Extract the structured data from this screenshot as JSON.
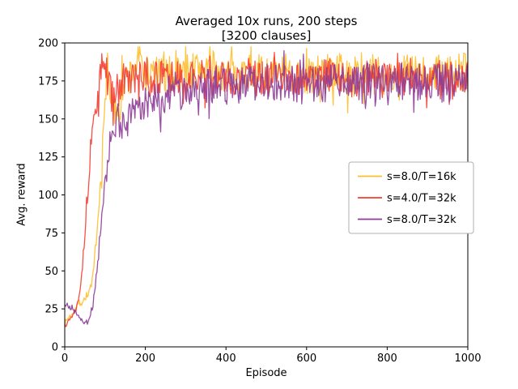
{
  "figure": {
    "background": "#ffffff"
  },
  "chart_data": {
    "type": "line",
    "title_lines": [
      "Averaged 10x runs, 200 steps",
      "[3200 clauses]"
    ],
    "xlabel": "Episode",
    "ylabel": "Avg. reward",
    "xlim": [
      0,
      1000
    ],
    "ylim": [
      0,
      200
    ],
    "xticks": [
      0,
      200,
      400,
      600,
      800,
      1000
    ],
    "yticks": [
      0,
      25,
      50,
      75,
      100,
      125,
      150,
      175,
      200
    ],
    "grid": false,
    "axis_color": "#000000",
    "legend": {
      "position": "center right",
      "border_color": "#b0b0b0"
    },
    "series": [
      {
        "name": "s=8.0/T=16k",
        "color": "#fdbf2d",
        "noise": 13,
        "seed": 7,
        "anchors": [
          [
            0,
            16
          ],
          [
            15,
            21
          ],
          [
            30,
            27
          ],
          [
            45,
            30
          ],
          [
            60,
            36
          ],
          [
            70,
            46
          ],
          [
            80,
            72
          ],
          [
            90,
            112
          ],
          [
            100,
            158
          ],
          [
            106,
            190
          ],
          [
            112,
            172
          ],
          [
            122,
            152
          ],
          [
            132,
            160
          ],
          [
            145,
            172
          ],
          [
            160,
            178
          ],
          [
            185,
            190
          ],
          [
            200,
            180
          ],
          [
            250,
            178
          ],
          [
            300,
            181
          ],
          [
            350,
            184
          ],
          [
            400,
            178
          ],
          [
            450,
            181
          ],
          [
            500,
            179
          ],
          [
            550,
            180
          ],
          [
            600,
            178
          ],
          [
            650,
            181
          ],
          [
            700,
            177
          ],
          [
            750,
            180
          ],
          [
            800,
            178
          ],
          [
            850,
            181
          ],
          [
            900,
            178
          ],
          [
            950,
            180
          ],
          [
            1000,
            181
          ]
        ]
      },
      {
        "name": "s=4.0/T=32k",
        "color": "#f43d31",
        "noise": 12,
        "seed": 13,
        "anchors": [
          [
            0,
            15
          ],
          [
            15,
            19
          ],
          [
            25,
            24
          ],
          [
            35,
            33
          ],
          [
            45,
            56
          ],
          [
            55,
            96
          ],
          [
            65,
            134
          ],
          [
            75,
            154
          ],
          [
            85,
            170
          ],
          [
            95,
            189
          ],
          [
            105,
            178
          ],
          [
            120,
            162
          ],
          [
            135,
            171
          ],
          [
            150,
            176
          ],
          [
            200,
            176
          ],
          [
            250,
            177
          ],
          [
            300,
            175
          ],
          [
            350,
            178
          ],
          [
            400,
            176
          ],
          [
            450,
            178
          ],
          [
            500,
            176
          ],
          [
            550,
            178
          ],
          [
            600,
            175
          ],
          [
            650,
            178
          ],
          [
            700,
            176
          ],
          [
            750,
            177
          ],
          [
            800,
            175
          ],
          [
            850,
            178
          ],
          [
            900,
            176
          ],
          [
            950,
            177
          ],
          [
            1000,
            178
          ]
        ]
      },
      {
        "name": "s=8.0/T=32k",
        "color": "#8e3c97",
        "noise": 13,
        "seed": 21,
        "anchors": [
          [
            0,
            28
          ],
          [
            15,
            26
          ],
          [
            30,
            22
          ],
          [
            45,
            16
          ],
          [
            60,
            18
          ],
          [
            70,
            28
          ],
          [
            80,
            50
          ],
          [
            90,
            80
          ],
          [
            100,
            106
          ],
          [
            115,
            132
          ],
          [
            130,
            150
          ],
          [
            145,
            143
          ],
          [
            160,
            152
          ],
          [
            180,
            157
          ],
          [
            200,
            160
          ],
          [
            230,
            163
          ],
          [
            260,
            167
          ],
          [
            300,
            170
          ],
          [
            350,
            172
          ],
          [
            400,
            172
          ],
          [
            450,
            173
          ],
          [
            500,
            174
          ],
          [
            550,
            172
          ],
          [
            600,
            173
          ],
          [
            650,
            174
          ],
          [
            700,
            173
          ],
          [
            750,
            174
          ],
          [
            800,
            172
          ],
          [
            850,
            174
          ],
          [
            900,
            173
          ],
          [
            950,
            173
          ],
          [
            1000,
            174
          ]
        ]
      }
    ]
  }
}
